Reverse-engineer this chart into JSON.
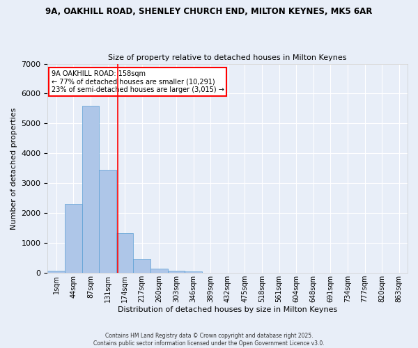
{
  "title_line1": "9A, OAKHILL ROAD, SHENLEY CHURCH END, MILTON KEYNES, MK5 6AR",
  "title_line2": "Size of property relative to detached houses in Milton Keynes",
  "xlabel": "Distribution of detached houses by size in Milton Keynes",
  "ylabel": "Number of detached properties",
  "categories": [
    "1sqm",
    "44sqm",
    "87sqm",
    "131sqm",
    "174sqm",
    "217sqm",
    "260sqm",
    "303sqm",
    "346sqm",
    "389sqm",
    "432sqm",
    "475sqm",
    "518sqm",
    "561sqm",
    "604sqm",
    "648sqm",
    "691sqm",
    "734sqm",
    "777sqm",
    "820sqm",
    "863sqm"
  ],
  "values": [
    70,
    2300,
    5600,
    3450,
    1320,
    480,
    155,
    70,
    55,
    0,
    0,
    0,
    0,
    0,
    0,
    0,
    0,
    0,
    0,
    0,
    0
  ],
  "bar_color": "#aec6e8",
  "bar_edge_color": "#5a9fd4",
  "vline_color": "red",
  "annotation_title": "9A OAKHILL ROAD: 158sqm",
  "annotation_line2": "← 77% of detached houses are smaller (10,291)",
  "annotation_line3": "23% of semi-detached houses are larger (3,015) →",
  "annotation_box_color": "red",
  "annotation_text_color": "black",
  "ylim": [
    0,
    7000
  ],
  "yticks": [
    0,
    1000,
    2000,
    3000,
    4000,
    5000,
    6000,
    7000
  ],
  "background_color": "#e8eef8",
  "grid_color": "white",
  "footer_line1": "Contains HM Land Registry data © Crown copyright and database right 2025.",
  "footer_line2": "Contains public sector information licensed under the Open Government Licence v3.0."
}
